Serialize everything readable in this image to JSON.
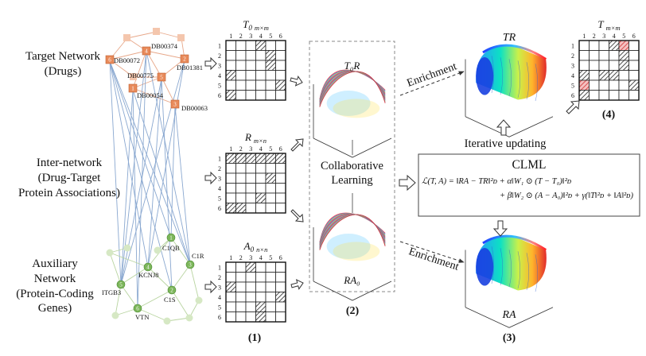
{
  "networks": {
    "target": {
      "line1": "Target Network",
      "line2": "(Drugs)"
    },
    "inter": {
      "line1": "Inter-network",
      "line2": "(Drug-Target",
      "line3": "Protein Associations)"
    },
    "aux": {
      "line1": "Auxiliary",
      "line2": "Network",
      "line3": "(Protein-Coding",
      "line4": "Genes)"
    }
  },
  "drug_nodes": [
    {
      "num": "6",
      "label": "DB00072"
    },
    {
      "num": "4",
      "label": "DB00374"
    },
    {
      "num": "2",
      "label": "DB01381"
    },
    {
      "num": "5",
      "label": "DB00775"
    },
    {
      "num": "1",
      "label": "DB00054"
    },
    {
      "num": "3",
      "label": "DB00063"
    }
  ],
  "gene_nodes": [
    {
      "num": "1",
      "label": "C1QB"
    },
    {
      "num": "3",
      "label": "C1R"
    },
    {
      "num": "4",
      "label": "KCNJ8"
    },
    {
      "num": "2",
      "label": "C1S"
    },
    {
      "num": "5",
      "label": "ITGB3"
    },
    {
      "num": "6",
      "label": "VTN"
    }
  ],
  "matrices": {
    "t0": {
      "name": "T",
      "sub": "0",
      "dims": "m×m",
      "cols": [
        "1",
        "2",
        "3",
        "4",
        "5",
        "6"
      ],
      "rows": [
        "1",
        "2",
        "3",
        "4",
        "5",
        "6"
      ]
    },
    "r": {
      "name": "R",
      "sub": "",
      "dims": "m×n",
      "cols": [
        "1",
        "2",
        "3",
        "4",
        "5",
        "6"
      ],
      "rows": [
        "1",
        "2",
        "3",
        "4",
        "5",
        "6"
      ]
    },
    "a0": {
      "name": "A",
      "sub": "0",
      "dims": "n×n",
      "cols": [
        "1",
        "2",
        "3",
        "4",
        "5",
        "6"
      ],
      "rows": [
        "1",
        "2",
        "3",
        "4",
        "5",
        "6"
      ]
    },
    "tmm": {
      "name": "T",
      "sub": "",
      "dims": "m×m",
      "cols": [
        "1",
        "2",
        "3",
        "4",
        "5",
        "6"
      ],
      "rows": [
        "1",
        "2",
        "3",
        "4",
        "5",
        "6"
      ]
    }
  },
  "collab": {
    "top_label": "T₀R",
    "text1": "Collaborative",
    "text2": "Learning",
    "bottom_label": "RA₀"
  },
  "enrichment": "Enrichment",
  "tr_label": "TR",
  "ra_label": "RA",
  "iterative": "Iterative updating",
  "clml": {
    "title": "CLML",
    "eq1": "ℒ(T, A) = ‖RA − TR‖²ᴅ + α‖W₁ ⊙ (T − T₀)‖²ᴅ",
    "eq2": "+ β‖W₂ ⊙ (A − A₀)‖²ᴅ + γ(‖T‖²ᴅ + ‖A‖²ᴅ)"
  },
  "step_labels": {
    "s1": "(1)",
    "s2": "(2)",
    "s3": "(3)",
    "s4": "(4)"
  },
  "colors": {
    "drug_node": "#e88a5a",
    "drug_edge": "#e8a88a",
    "gene_node": "#7cb65a",
    "gene_edge": "#b8d4a0",
    "inter_edge": "#8aa8d0",
    "highlight": "#e06060"
  }
}
